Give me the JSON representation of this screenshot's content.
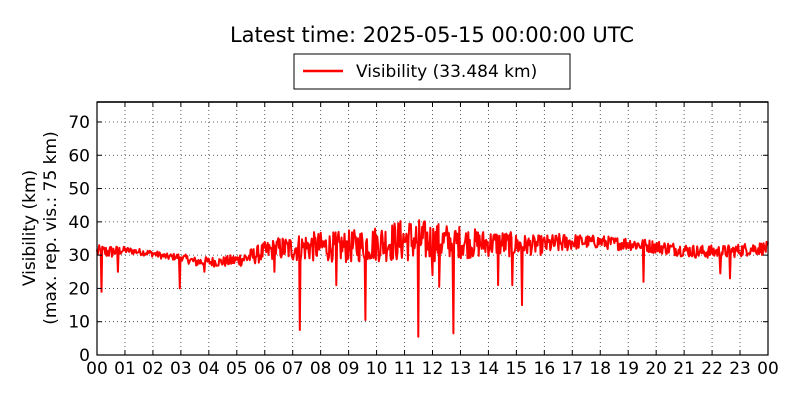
{
  "chart_data": {
    "type": "line",
    "title": "Latest time: 2025-05-15 00:00:00 UTC",
    "ylabel_line1": "Visibility (km)",
    "ylabel_line2": "(max. rep. vis.: 75 km)",
    "xlabel": "",
    "ylim": [
      0,
      76
    ],
    "xlim": [
      0,
      24
    ],
    "grid": true,
    "legend_placement": "top-center",
    "x_tick_labels": [
      "00",
      "01",
      "02",
      "03",
      "04",
      "05",
      "06",
      "07",
      "08",
      "09",
      "10",
      "11",
      "12",
      "13",
      "14",
      "15",
      "16",
      "17",
      "18",
      "19",
      "20",
      "21",
      "22",
      "23",
      "00"
    ],
    "y_tick_labels": [
      "0",
      "10",
      "20",
      "30",
      "40",
      "50",
      "60",
      "70"
    ],
    "y_ticks": [
      0,
      10,
      20,
      30,
      40,
      50,
      60,
      70
    ],
    "series": [
      {
        "name": "Visibility (33.484 km)",
        "color": "#ff0000",
        "x": [
          0,
          0.5,
          1,
          1.5,
          2,
          2.5,
          3,
          3.5,
          4,
          4.5,
          5,
          5.5,
          6,
          6.5,
          7,
          7.5,
          8,
          8.5,
          9,
          9.5,
          10,
          10.5,
          11,
          11.5,
          12,
          12.5,
          13,
          13.5,
          14,
          14.5,
          15,
          15.5,
          16,
          16.5,
          17,
          17.5,
          18,
          18.5,
          19,
          19.5,
          20,
          20.5,
          21,
          21.5,
          22,
          22.5,
          23,
          23.5,
          24
        ],
        "y": [
          31,
          31,
          31.5,
          31,
          30.5,
          29.5,
          29.5,
          28,
          28,
          28,
          28.5,
          29.5,
          31,
          32,
          32,
          32.5,
          32.5,
          32.5,
          32.5,
          33,
          33.5,
          34,
          34.5,
          34.5,
          34,
          34,
          34,
          33.5,
          33.5,
          33.5,
          33,
          33,
          33,
          33.5,
          34,
          34,
          34,
          33.5,
          33.5,
          33,
          32.5,
          32,
          31.5,
          31,
          31,
          31,
          31.5,
          32,
          32
        ],
        "noise_amplitude": [
          2,
          2,
          1,
          1,
          1,
          1,
          1,
          1.5,
          1.5,
          1.5,
          2,
          2.5,
          3,
          3.5,
          4,
          4.5,
          4.5,
          4.5,
          5,
          5,
          5.5,
          6,
          6.5,
          6.5,
          6,
          5.5,
          5,
          4.5,
          4,
          4,
          3.5,
          3,
          3,
          3,
          2.5,
          2,
          2,
          2,
          2,
          2,
          2,
          2,
          2,
          2,
          2,
          2,
          2,
          2,
          2
        ],
        "dips": [
          {
            "x": 0.15,
            "y": 19
          },
          {
            "x": 0.75,
            "y": 25
          },
          {
            "x": 2.95,
            "y": 20
          },
          {
            "x": 3.85,
            "y": 25
          },
          {
            "x": 6.35,
            "y": 25
          },
          {
            "x": 7.25,
            "y": 7.5
          },
          {
            "x": 8.55,
            "y": 21
          },
          {
            "x": 9.6,
            "y": 10.5
          },
          {
            "x": 11.5,
            "y": 5.5
          },
          {
            "x": 12.0,
            "y": 24
          },
          {
            "x": 12.25,
            "y": 20.5
          },
          {
            "x": 12.75,
            "y": 6.5
          },
          {
            "x": 14.35,
            "y": 21
          },
          {
            "x": 14.85,
            "y": 21
          },
          {
            "x": 15.2,
            "y": 15
          },
          {
            "x": 19.55,
            "y": 22
          },
          {
            "x": 22.3,
            "y": 24.5
          },
          {
            "x": 22.65,
            "y": 23
          }
        ]
      }
    ]
  }
}
